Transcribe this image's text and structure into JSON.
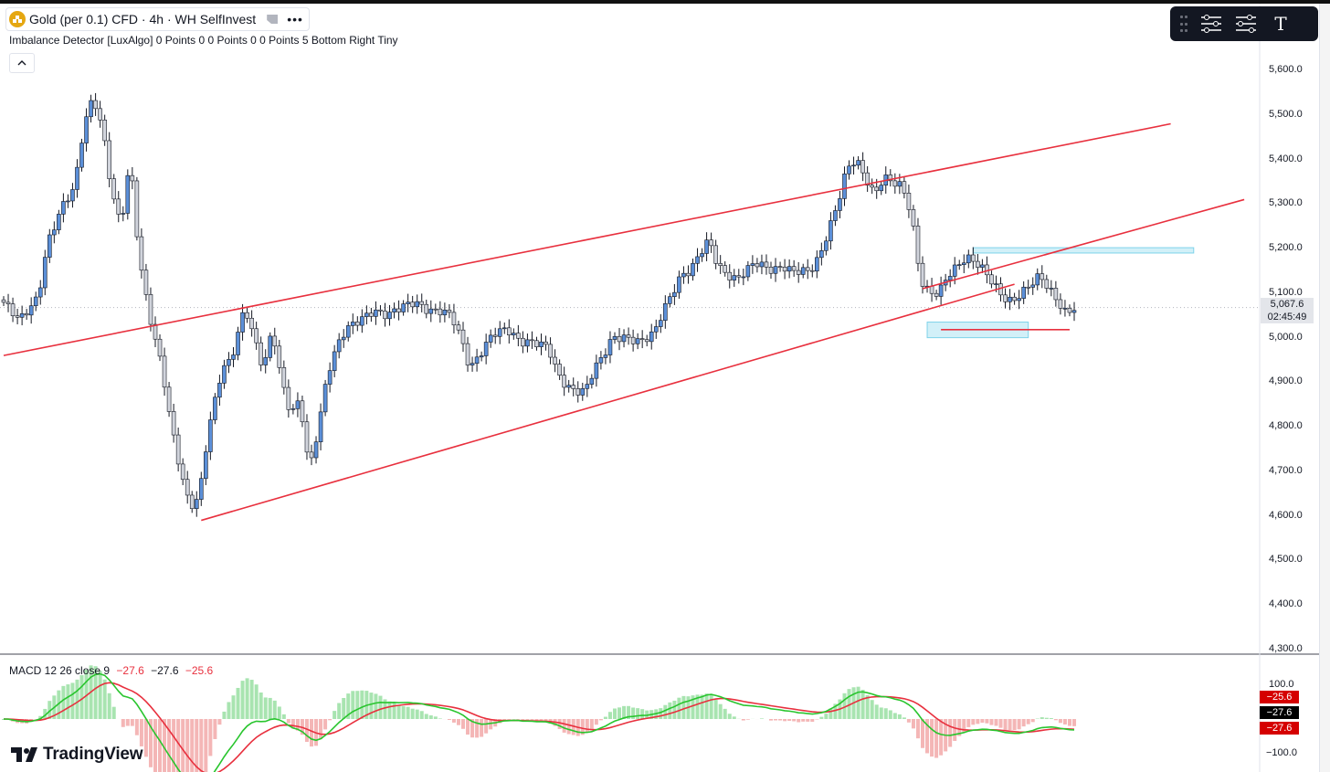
{
  "chart_header": {
    "title": "Gold (per 0.1) CFD · 4h · WH SelfInvest",
    "indicator": "Imbalance Detector [LuxAlgo] 0 Points 0 0 Points 0 0 Points 5 Bottom Right Tiny"
  },
  "price_axis": [
    "5,600.0",
    "5,500.0",
    "5,400.0",
    "5,300.0",
    "5,200.0",
    "5,100.0",
    "5,000.0",
    "4,900.0",
    "4,800.0",
    "4,700.0",
    "4,600.0",
    "4,500.0",
    "4,400.0",
    "4,300.0"
  ],
  "current_price": {
    "value": "5,067.6",
    "countdown": "02:45:49"
  },
  "macd": {
    "legend_name": "MACD 12 26 close 9",
    "values": [
      "−27.6",
      "−27.6",
      "−25.6"
    ],
    "axis": [
      "100.0",
      "−100.0"
    ],
    "badges": [
      "−25.6",
      "−27.6",
      "−27.6"
    ]
  },
  "branding": {
    "logo_text": "TradingView"
  },
  "colors": {
    "up_candle": "#5b8fd8",
    "down_candle": "#d1d4dc",
    "trendline": "#e8303e",
    "fvg_zone": "#bfe9f5",
    "macd_line": "#000000",
    "signal_line": "#e8303e",
    "hist_pos": "#a8e4b0",
    "hist_neg": "#f4b6b6",
    "badge_red": "#d50000"
  },
  "chart_data": {
    "type": "candlestick",
    "symbol": "Gold (per 0.1) CFD",
    "timeframe": "4h",
    "ylim": [
      4300,
      5650
    ],
    "current_price": 5067.6,
    "anchors": [
      [
        0,
        5085
      ],
      [
        4,
        5040
      ],
      [
        8,
        5090
      ],
      [
        10,
        5210
      ],
      [
        13,
        5290
      ],
      [
        16,
        5340
      ],
      [
        18,
        5480
      ],
      [
        20,
        5540
      ],
      [
        22,
        5470
      ],
      [
        24,
        5330
      ],
      [
        26,
        5250
      ],
      [
        28,
        5400
      ],
      [
        30,
        5180
      ],
      [
        32,
        5060
      ],
      [
        35,
        4930
      ],
      [
        37,
        4800
      ],
      [
        39,
        4700
      ],
      [
        41,
        4620
      ],
      [
        43,
        4640
      ],
      [
        45,
        4790
      ],
      [
        48,
        4930
      ],
      [
        50,
        4950
      ],
      [
        53,
        5070
      ],
      [
        55,
        5000
      ],
      [
        57,
        4930
      ],
      [
        59,
        5020
      ],
      [
        61,
        4900
      ],
      [
        63,
        4830
      ],
      [
        65,
        4860
      ],
      [
        67,
        4700
      ],
      [
        69,
        4800
      ],
      [
        71,
        4920
      ],
      [
        73,
        4980
      ],
      [
        75,
        5020
      ],
      [
        78,
        5040
      ],
      [
        81,
        5060
      ],
      [
        84,
        5050
      ],
      [
        87,
        5070
      ],
      [
        90,
        5080
      ],
      [
        93,
        5060
      ],
      [
        96,
        5060
      ],
      [
        98,
        5050
      ],
      [
        100,
        5000
      ],
      [
        102,
        4930
      ],
      [
        104,
        4960
      ],
      [
        107,
        5010
      ],
      [
        110,
        5020
      ],
      [
        113,
        4990
      ],
      [
        116,
        4990
      ],
      [
        119,
        4980
      ],
      [
        121,
        4920
      ],
      [
        123,
        4890
      ],
      [
        125,
        4880
      ],
      [
        127,
        4880
      ],
      [
        129,
        4930
      ],
      [
        131,
        4960
      ],
      [
        133,
        5000
      ],
      [
        136,
        5000
      ],
      [
        139,
        4990
      ],
      [
        142,
        5010
      ],
      [
        144,
        5060
      ],
      [
        146,
        5100
      ],
      [
        148,
        5140
      ],
      [
        150,
        5150
      ],
      [
        152,
        5190
      ],
      [
        154,
        5220
      ],
      [
        156,
        5160
      ],
      [
        158,
        5140
      ],
      [
        160,
        5130
      ],
      [
        162,
        5150
      ],
      [
        164,
        5170
      ],
      [
        166,
        5160
      ],
      [
        168,
        5150
      ],
      [
        170,
        5160
      ],
      [
        172,
        5150
      ],
      [
        174,
        5150
      ],
      [
        176,
        5150
      ],
      [
        178,
        5180
      ],
      [
        180,
        5240
      ],
      [
        182,
        5300
      ],
      [
        184,
        5380
      ],
      [
        186,
        5400
      ],
      [
        188,
        5360
      ],
      [
        190,
        5320
      ],
      [
        192,
        5360
      ],
      [
        194,
        5350
      ],
      [
        196,
        5340
      ],
      [
        198,
        5280
      ],
      [
        200,
        5130
      ],
      [
        202,
        5100
      ],
      [
        204,
        5100
      ],
      [
        206,
        5140
      ],
      [
        208,
        5160
      ],
      [
        210,
        5180
      ],
      [
        212,
        5170
      ],
      [
        214,
        5150
      ],
      [
        216,
        5120
      ],
      [
        218,
        5090
      ],
      [
        220,
        5080
      ],
      [
        222,
        5100
      ],
      [
        224,
        5120
      ],
      [
        226,
        5140
      ],
      [
        228,
        5110
      ],
      [
        230,
        5080
      ],
      [
        232,
        5050
      ],
      [
        233,
        5067.6
      ]
    ],
    "lines": [
      {
        "from": [
          0,
          4960
        ],
        "to": [
          254,
          5480
        ],
        "label": "upper channel"
      },
      {
        "from": [
          43,
          4590
        ],
        "to": [
          220,
          5120
        ],
        "label": "lower channel"
      },
      {
        "from": [
          200,
          5110
        ],
        "to": [
          270,
          5310
        ],
        "label": "trendline"
      },
      {
        "from": [
          204,
          5018
        ],
        "to": [
          232,
          5018
        ],
        "label": "support"
      }
    ],
    "zones": [
      {
        "x0": 201,
        "x1": 223,
        "y0": 5000,
        "y1": 5035
      },
      {
        "x0": 211,
        "x1": 259,
        "y0": 5190,
        "y1": 5202
      }
    ]
  }
}
